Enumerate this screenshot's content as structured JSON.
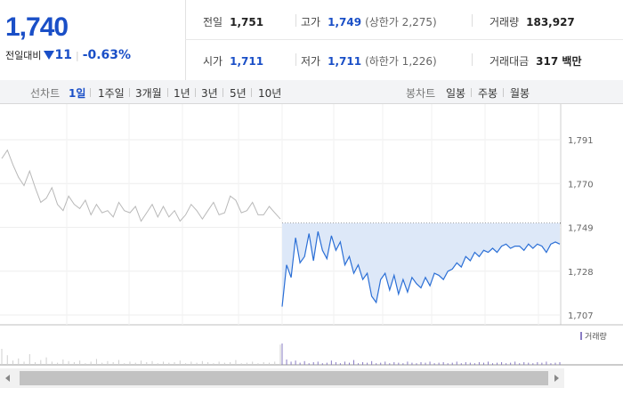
{
  "quote": {
    "price": "1,740",
    "change_label": "전일대비",
    "change_value": "11",
    "change_pct": "-0.63%"
  },
  "stats": {
    "prev": {
      "label": "전일",
      "value": "1,751"
    },
    "high": {
      "label": "고가",
      "value": "1,749",
      "sub": "(상한가 2,275)"
    },
    "volume": {
      "label": "거래량",
      "value": "183,927"
    },
    "open": {
      "label": "시가",
      "value": "1,711"
    },
    "low": {
      "label": "저가",
      "value": "1,711",
      "sub": "(하한가 1,226)"
    },
    "amount": {
      "label": "거래대금",
      "value": "317 백만"
    }
  },
  "toolbar": {
    "line_label": "선차트",
    "line_periods": [
      "1일",
      "1주일",
      "3개월",
      "1년",
      "3년",
      "5년",
      "10년"
    ],
    "line_active": 0,
    "candle_label": "봉차트",
    "candle_periods": [
      "일봉",
      "주봉",
      "월봉"
    ]
  },
  "chart_data": {
    "type": "line",
    "y_ticks": [
      "1,791",
      "1,770",
      "1,749",
      "1,728",
      "1,707"
    ],
    "ylim": [
      1707,
      1791
    ],
    "reference_value": 1751,
    "previous_series": [
      1782,
      1786,
      1779,
      1773,
      1769,
      1776,
      1768,
      1761,
      1763,
      1768,
      1760,
      1757,
      1764,
      1760,
      1758,
      1762,
      1755,
      1760,
      1756,
      1757,
      1754,
      1761,
      1757,
      1756,
      1759,
      1752,
      1756,
      1760,
      1754,
      1759,
      1754,
      1757,
      1752,
      1755,
      1760,
      1757,
      1753,
      1757,
      1761,
      1755,
      1756,
      1764,
      1762,
      1756,
      1757,
      1761,
      1755,
      1755,
      1759,
      1756,
      1753
    ],
    "today_series": [
      1711,
      1731,
      1725,
      1744,
      1732,
      1735,
      1746,
      1733,
      1747,
      1738,
      1734,
      1745,
      1738,
      1742,
      1731,
      1735,
      1727,
      1731,
      1724,
      1727,
      1716,
      1713,
      1724,
      1727,
      1719,
      1726,
      1717,
      1724,
      1718,
      1725,
      1722,
      1720,
      1725,
      1721,
      1727,
      1726,
      1724,
      1728,
      1729,
      1732,
      1730,
      1735,
      1733,
      1737,
      1735,
      1738,
      1737,
      1739,
      1737,
      1740,
      1741,
      1739,
      1740,
      1740,
      1738,
      1741,
      1739,
      1741,
      1740,
      1737,
      1741,
      1742,
      1741
    ],
    "volume_legend": "거래량"
  }
}
